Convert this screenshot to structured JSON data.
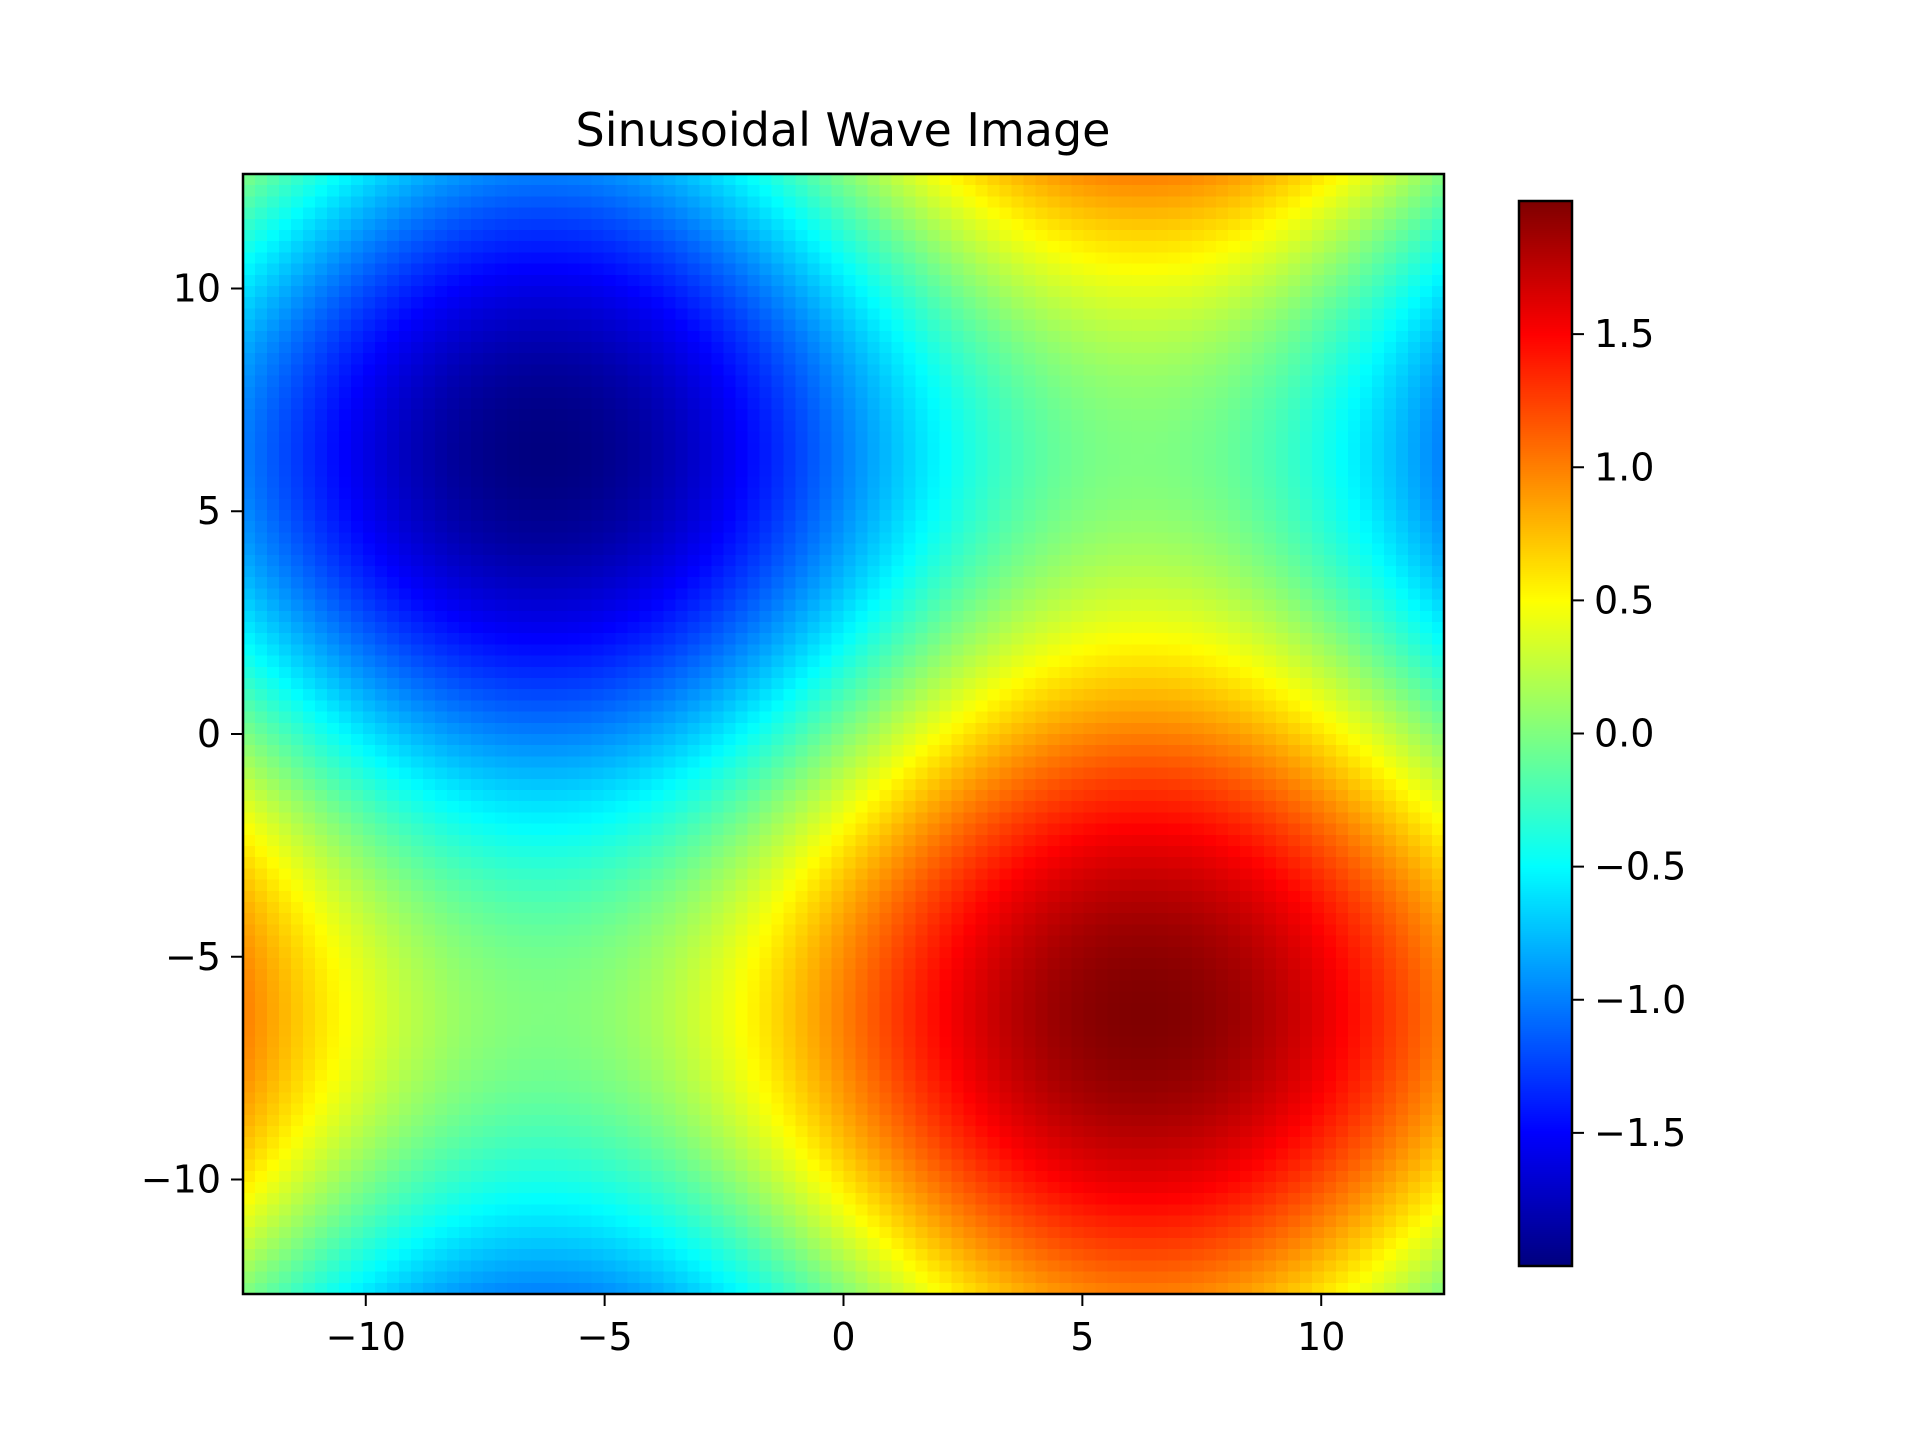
{
  "chart_data": {
    "type": "heatmap",
    "title": "Sinusoidal Wave Image",
    "xlabel": "",
    "ylabel": "",
    "function": "sin(x/4) - sin(y/4)",
    "xlim": [
      -12.57,
      12.57
    ],
    "ylim": [
      -12.57,
      12.57
    ],
    "grid_resolution": [
      100,
      100
    ],
    "colormap": "jet",
    "value_range": [
      -2.0,
      2.0
    ],
    "x_ticks": [
      {
        "value": -10,
        "label": "−10"
      },
      {
        "value": -5,
        "label": "−5"
      },
      {
        "value": 0,
        "label": "0"
      },
      {
        "value": 5,
        "label": "5"
      },
      {
        "value": 10,
        "label": "10"
      }
    ],
    "y_ticks": [
      {
        "value": 10,
        "label": "10"
      },
      {
        "value": 5,
        "label": "5"
      },
      {
        "value": 0,
        "label": "0"
      },
      {
        "value": -5,
        "label": "−5"
      },
      {
        "value": -10,
        "label": "−10"
      }
    ],
    "colorbar": {
      "ticks": [
        {
          "value": 1.5,
          "label": "1.5"
        },
        {
          "value": 1.0,
          "label": "1.0"
        },
        {
          "value": 0.5,
          "label": "0.5"
        },
        {
          "value": 0.0,
          "label": "0.0"
        },
        {
          "value": -0.5,
          "label": "−0.5"
        },
        {
          "value": -1.0,
          "label": "−1.0"
        },
        {
          "value": -1.5,
          "label": "−1.5"
        }
      ]
    },
    "grid": false,
    "legend": "none"
  }
}
